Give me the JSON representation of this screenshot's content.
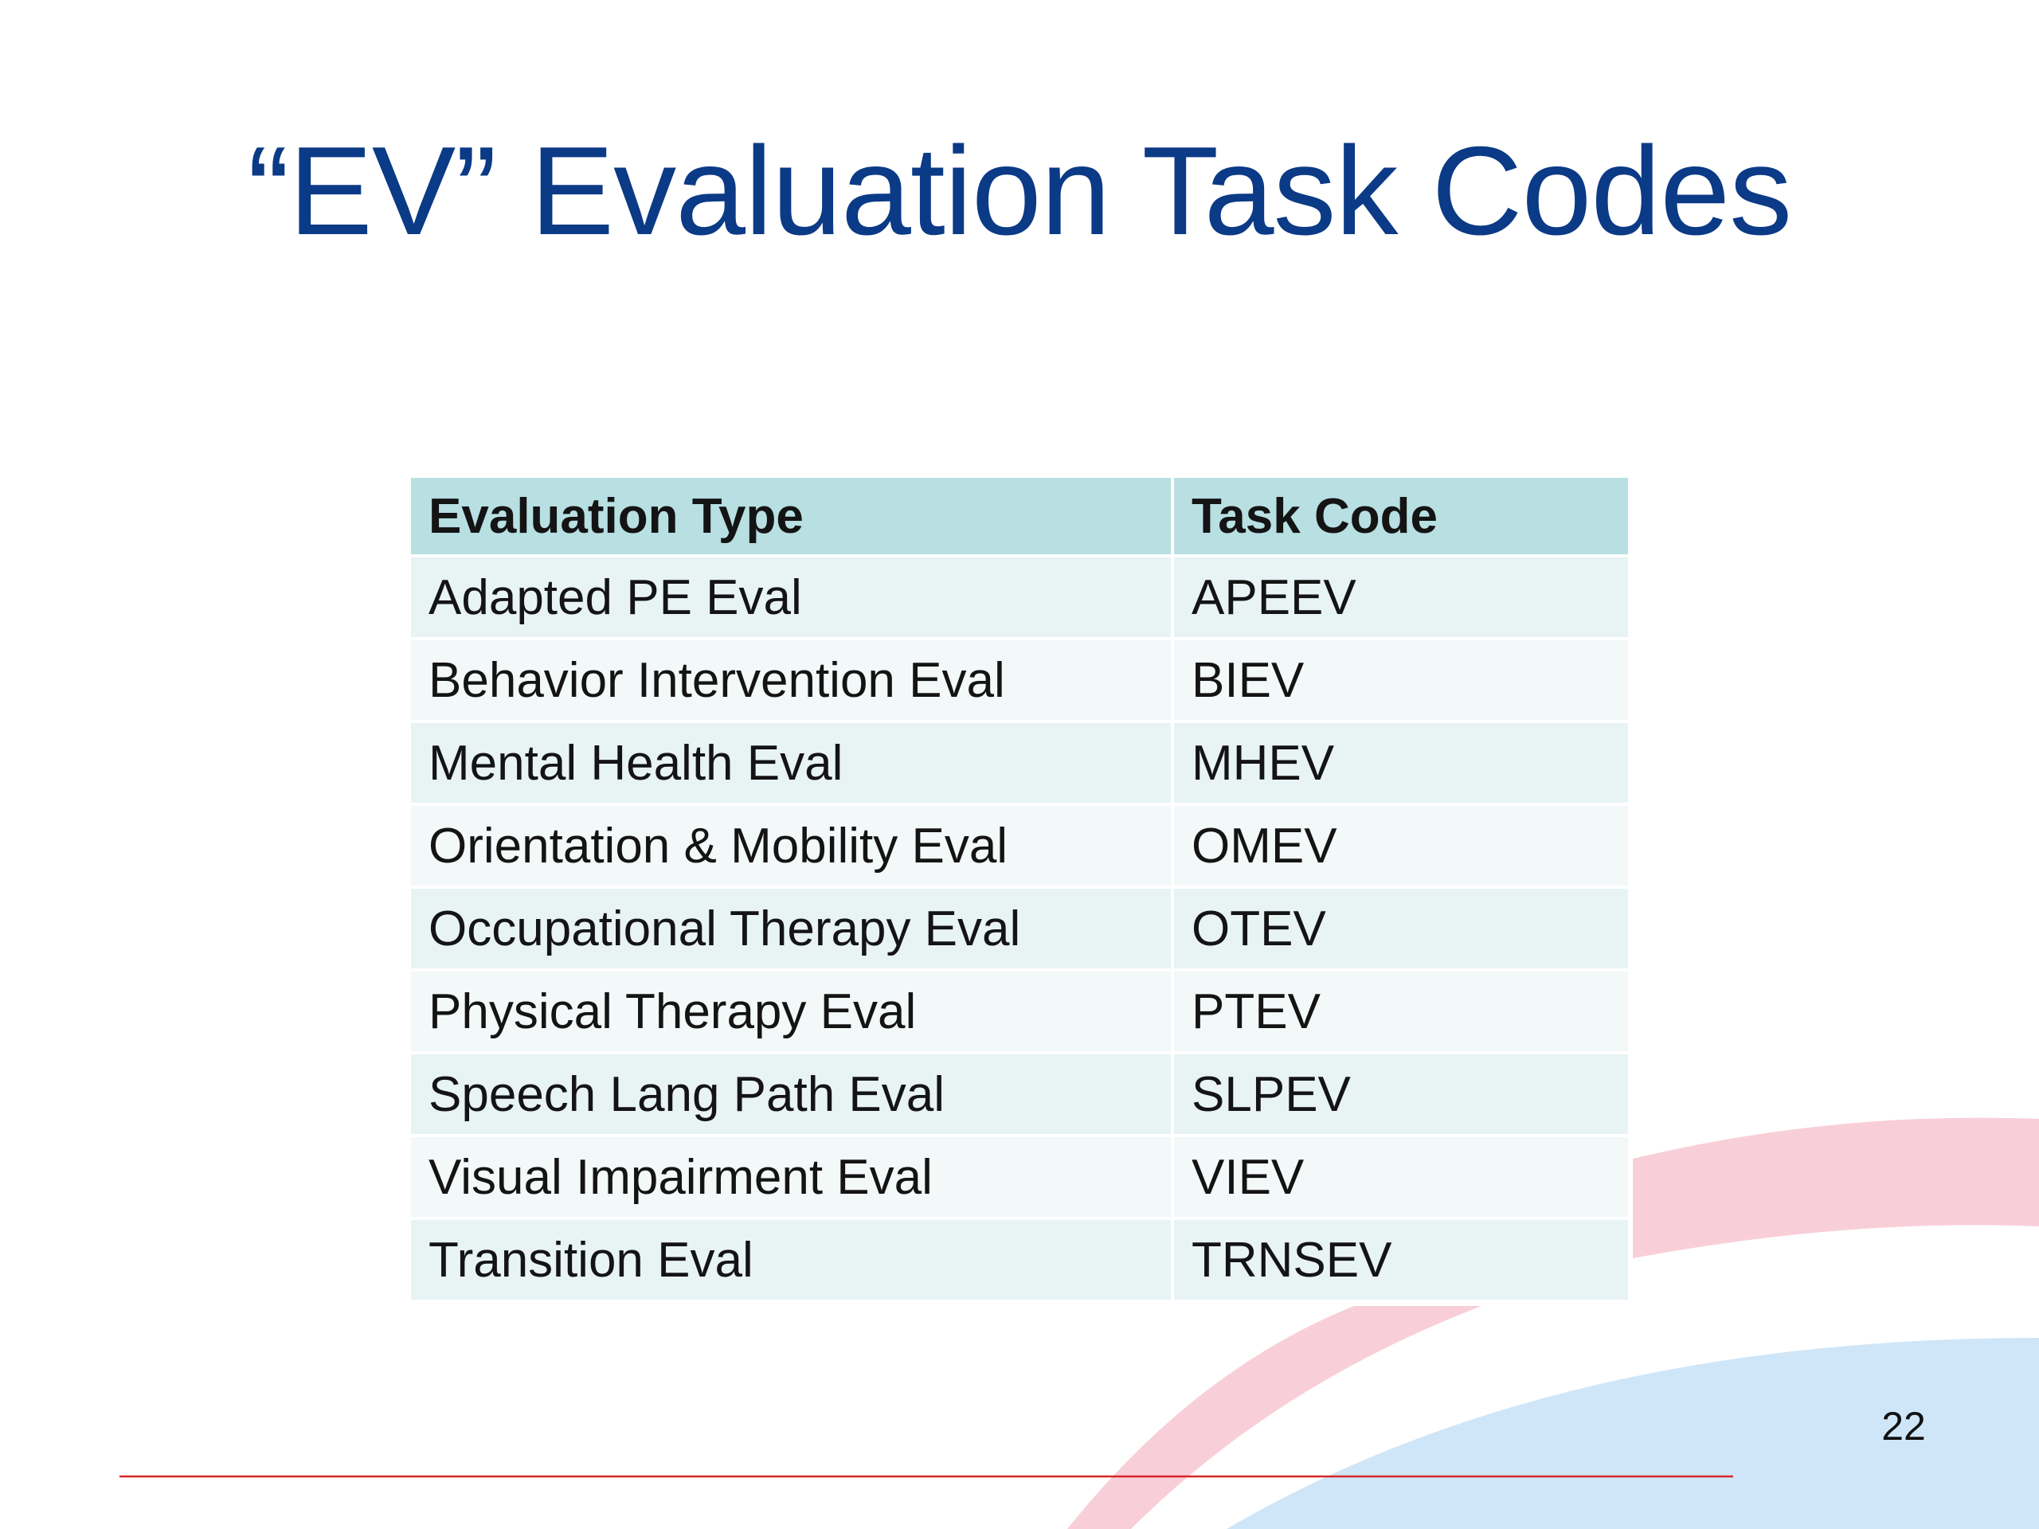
{
  "slide": {
    "title": "“EV” Evaluation Task Codes",
    "page_number": "22"
  },
  "table": {
    "headers": [
      "Evaluation Type",
      "Task Code"
    ],
    "rows": [
      [
        "Adapted PE Eval",
        "APEEV"
      ],
      [
        "Behavior Intervention Eval",
        "BIEV"
      ],
      [
        "Mental Health Eval",
        "MHEV"
      ],
      [
        "Orientation & Mobility Eval",
        "OMEV"
      ],
      [
        "Occupational Therapy Eval",
        "OTEV"
      ],
      [
        "Physical Therapy Eval",
        "PTEV"
      ],
      [
        "Speech Lang Path Eval",
        "SLPEV"
      ],
      [
        "Visual Impairment Eval",
        "VIEV"
      ],
      [
        "Transition Eval",
        "TRNSEV"
      ]
    ]
  },
  "colors": {
    "title": "#0b3a86",
    "header_bg": "#b8dfe2",
    "row_bg_odd": "#e8f3f4",
    "row_bg_even": "#f3f8f9",
    "pink_arc": "#f8cfd8",
    "blue_arc": "#cfe6f8",
    "rule": "#d62828"
  }
}
